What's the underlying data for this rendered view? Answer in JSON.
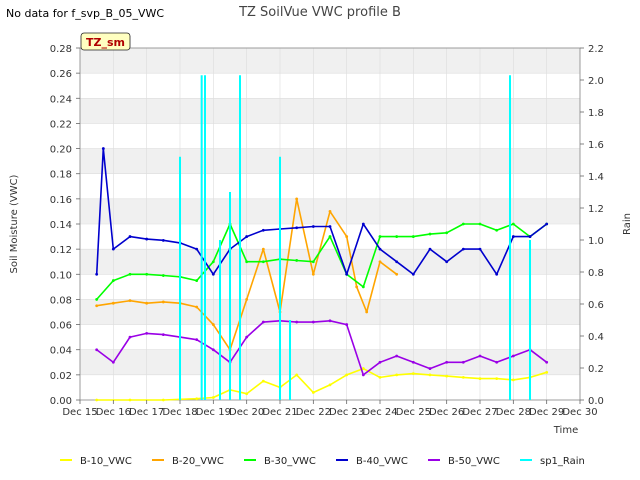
{
  "header": {
    "no_data_note": "No data for f_svp_B_05_VWC"
  },
  "chart_data": {
    "type": "line",
    "title": "TZ SoilVue VWC profile B",
    "xlabel": "Time",
    "ylabel": "Soil Moisture (VWC)",
    "y2label": "Rain",
    "site_badge": "TZ_sm",
    "xlim": [
      15,
      30
    ],
    "ylim": [
      0,
      0.28
    ],
    "y2lim": [
      0,
      2.2
    ],
    "x_ticks": [
      15,
      16,
      17,
      18,
      19,
      20,
      21,
      22,
      23,
      24,
      25,
      26,
      27,
      28,
      29,
      30
    ],
    "x_tick_labels": [
      "Dec 15",
      "Dec 16",
      "Dec 17",
      "Dec 18",
      "Dec 19",
      "Dec 20",
      "Dec 21",
      "Dec 22",
      "Dec 23",
      "Dec 24",
      "Dec 25",
      "Dec 26",
      "Dec 27",
      "Dec 28",
      "Dec 29",
      "Dec 30"
    ],
    "y_ticks": [
      0.0,
      0.02,
      0.04,
      0.06,
      0.08,
      0.1,
      0.12,
      0.14,
      0.16,
      0.18,
      0.2,
      0.22,
      0.24,
      0.26,
      0.28
    ],
    "y_tick_labels": [
      "0.00",
      "0.02",
      "0.04",
      "0.06",
      "0.08",
      "0.10",
      "0.12",
      "0.14",
      "0.16",
      "0.18",
      "0.20",
      "0.22",
      "0.24",
      "0.26",
      "0.28"
    ],
    "y2_ticks": [
      0,
      0.2,
      0.4,
      0.6,
      0.8,
      1.0,
      1.2,
      1.4,
      1.6,
      1.8,
      2.0,
      2.2
    ],
    "y2_tick_labels": [
      "0.0",
      "0.2",
      "0.4",
      "0.6",
      "0.8",
      "1.0",
      "1.2",
      "1.4",
      "1.6",
      "1.8",
      "2.0",
      "2.2"
    ],
    "legend_position": "bottom",
    "series": [
      {
        "name": "B-10_VWC",
        "color": "#ffff00",
        "axis": "left",
        "x": [
          15.5,
          16.5,
          17.5,
          18.5,
          19.0,
          19.5,
          20.0,
          20.5,
          21.0,
          21.5,
          22.0,
          22.5,
          23.0,
          23.5,
          24.0,
          24.5,
          25.0,
          25.5,
          26.0,
          26.5,
          27.0,
          27.5,
          28.0,
          28.5,
          29.0
        ],
        "y": [
          0.0,
          0.0,
          0.0,
          0.001,
          0.002,
          0.008,
          0.005,
          0.015,
          0.01,
          0.02,
          0.006,
          0.012,
          0.02,
          0.025,
          0.018,
          0.02,
          0.021,
          0.02,
          0.019,
          0.018,
          0.017,
          0.017,
          0.016,
          0.018,
          0.022
        ]
      },
      {
        "name": "B-20_VWC",
        "color": "#ffa500",
        "axis": "left",
        "x": [
          15.5,
          16.0,
          16.5,
          17.0,
          17.5,
          18.0,
          18.5,
          19.0,
          19.5,
          20.0,
          20.5,
          21.0,
          21.5,
          22.0,
          22.5,
          23.0,
          23.3,
          23.6,
          24.0,
          24.5
        ],
        "y": [
          0.075,
          0.077,
          0.079,
          0.077,
          0.078,
          0.077,
          0.074,
          0.06,
          0.04,
          0.08,
          0.12,
          0.07,
          0.16,
          0.1,
          0.15,
          0.13,
          0.09,
          0.07,
          0.11,
          0.1
        ]
      },
      {
        "name": "B-30_VWC",
        "color": "#00ff00",
        "axis": "left",
        "x": [
          15.5,
          16.0,
          16.5,
          17.0,
          17.5,
          18.0,
          18.5,
          19.0,
          19.5,
          20.0,
          20.5,
          21.0,
          21.5,
          22.0,
          22.5,
          23.0,
          23.5,
          24.0,
          24.5,
          25.0,
          25.5,
          26.0,
          26.5,
          27.0,
          27.5,
          28.0,
          28.5,
          29.0
        ],
        "y": [
          0.08,
          0.095,
          0.1,
          0.1,
          0.099,
          0.098,
          0.095,
          0.11,
          0.14,
          0.11,
          0.11,
          0.112,
          0.111,
          0.11,
          0.13,
          0.1,
          0.09,
          0.13,
          0.13,
          0.13,
          0.132,
          0.133,
          0.14,
          0.14,
          0.135,
          0.14,
          0.13,
          0.14
        ]
      },
      {
        "name": "B-40_VWC",
        "color": "#0000cd",
        "axis": "left",
        "x": [
          15.5,
          15.7,
          16.0,
          16.5,
          17.0,
          17.5,
          18.0,
          18.5,
          19.0,
          19.5,
          20.0,
          20.5,
          21.0,
          21.5,
          22.0,
          22.5,
          23.0,
          23.5,
          24.0,
          24.5,
          25.0,
          25.5,
          26.0,
          26.5,
          27.0,
          27.5,
          28.0,
          28.5,
          29.0
        ],
        "y": [
          0.1,
          0.2,
          0.12,
          0.13,
          0.128,
          0.127,
          0.125,
          0.12,
          0.1,
          0.12,
          0.13,
          0.135,
          0.136,
          0.137,
          0.138,
          0.138,
          0.1,
          0.14,
          0.12,
          0.11,
          0.1,
          0.12,
          0.11,
          0.12,
          0.12,
          0.1,
          0.13,
          0.13,
          0.14
        ]
      },
      {
        "name": "B-50_VWC",
        "color": "#9a00e6",
        "axis": "left",
        "x": [
          15.5,
          16.0,
          16.5,
          17.0,
          17.5,
          18.0,
          18.5,
          19.0,
          19.5,
          20.0,
          20.5,
          21.0,
          21.5,
          22.0,
          22.5,
          23.0,
          23.5,
          24.0,
          24.5,
          25.0,
          25.5,
          26.0,
          26.5,
          27.0,
          27.5,
          28.0,
          28.5,
          29.0
        ],
        "y": [
          0.04,
          0.03,
          0.05,
          0.053,
          0.052,
          0.05,
          0.048,
          0.04,
          0.03,
          0.05,
          0.062,
          0.063,
          0.062,
          0.062,
          0.063,
          0.06,
          0.02,
          0.03,
          0.035,
          0.03,
          0.025,
          0.03,
          0.03,
          0.035,
          0.03,
          0.035,
          0.04,
          0.03
        ]
      },
      {
        "name": "sp1_Rain",
        "color": "#00ffff",
        "axis": "right",
        "x": [
          18.0,
          18.65,
          18.75,
          19.2,
          19.5,
          19.8,
          21.0,
          21.3,
          27.9,
          28.5
        ],
        "y": [
          1.52,
          2.03,
          2.03,
          1.0,
          1.3,
          2.03,
          1.52,
          0.5,
          2.03,
          1.0
        ]
      }
    ]
  }
}
